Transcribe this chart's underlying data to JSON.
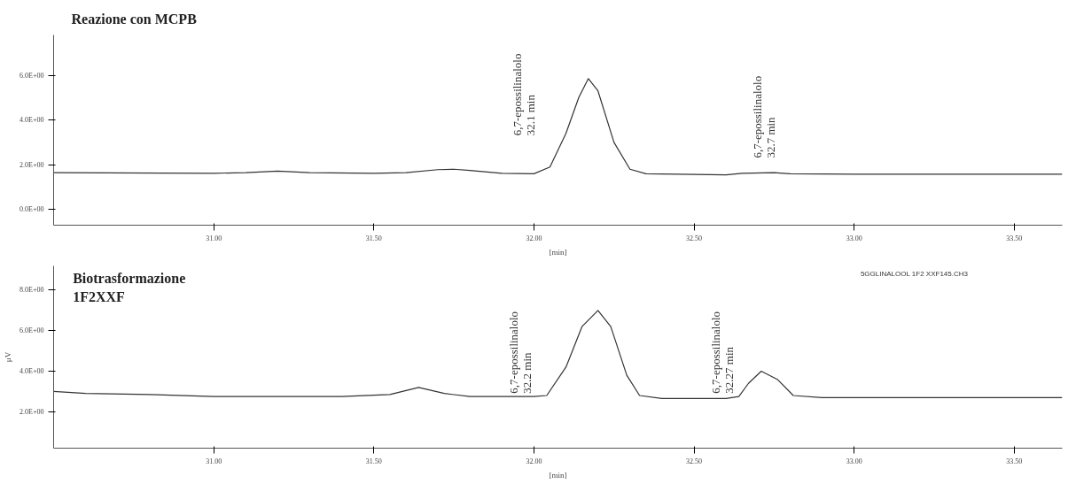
{
  "chart_data": [
    {
      "type": "line",
      "title": "Reazione con MCPB",
      "xlabel": "[min]",
      "xlim": [
        30.5,
        33.65
      ],
      "ylim": [
        -0.7,
        7.8
      ],
      "xticks": [
        {
          "value": 31,
          "label": "31.00"
        },
        {
          "value": 31.5,
          "label": "31.50"
        },
        {
          "value": 32,
          "label": "32.00"
        },
        {
          "value": 32.5,
          "label": "32.50"
        },
        {
          "value": 33,
          "label": "33.00"
        },
        {
          "value": 33.5,
          "label": "33.50"
        }
      ],
      "yticks": [
        {
          "value": 0,
          "label": "0.0E+00"
        },
        {
          "value": 2,
          "label": "2.0E+00"
        },
        {
          "value": 4,
          "label": "4.0E+00"
        },
        {
          "value": 6,
          "label": "6.0E+00"
        }
      ],
      "series": [
        {
          "color": "#333333",
          "x": [
            30.5,
            31.0,
            31.1,
            31.2,
            31.3,
            31.5,
            31.6,
            31.7,
            31.75,
            31.8,
            31.9,
            32.0,
            32.05,
            32.1,
            32.14,
            32.17,
            32.2,
            32.25,
            32.3,
            32.35,
            32.45,
            32.6,
            32.65,
            32.75,
            32.8,
            33.0,
            33.5,
            33.65
          ],
          "values": [
            1.65,
            1.62,
            1.65,
            1.72,
            1.65,
            1.62,
            1.65,
            1.78,
            1.8,
            1.75,
            1.62,
            1.6,
            1.9,
            3.4,
            5.0,
            5.85,
            5.3,
            3.0,
            1.8,
            1.6,
            1.58,
            1.55,
            1.62,
            1.65,
            1.6,
            1.58,
            1.58,
            1.58
          ]
        }
      ],
      "annotations": [
        "6,7-epossilinalolo\n32.1 min",
        "6,7-epossilinalolo\n32.7 min"
      ],
      "grid": false
    },
    {
      "type": "line",
      "title": "Biotrasformazione\n1F2XXF",
      "xlabel": "[min]",
      "ylabel": "μV",
      "xlim": [
        30.5,
        33.65
      ],
      "ylim": [
        0.2,
        9.2
      ],
      "xticks": [
        {
          "value": 31,
          "label": "31.00"
        },
        {
          "value": 31.5,
          "label": "31.50"
        },
        {
          "value": 32,
          "label": "32.00"
        },
        {
          "value": 32.5,
          "label": "32.50"
        },
        {
          "value": 33,
          "label": "33.00"
        },
        {
          "value": 33.5,
          "label": "33.50"
        }
      ],
      "yticks": [
        {
          "value": 2,
          "label": "2.0E+00"
        },
        {
          "value": 4,
          "label": "4.0E+00"
        },
        {
          "value": 6,
          "label": "6.0E+00"
        },
        {
          "value": 8,
          "label": "8.0E+00"
        }
      ],
      "series": [
        {
          "color": "#333333",
          "x": [
            30.5,
            30.6,
            30.8,
            31.0,
            31.4,
            31.55,
            31.64,
            31.72,
            31.8,
            32.0,
            32.04,
            32.1,
            32.15,
            32.2,
            32.24,
            32.29,
            32.33,
            32.4,
            32.6,
            32.64,
            32.67,
            32.71,
            32.76,
            32.81,
            32.9,
            33.65
          ],
          "values": [
            3.0,
            2.9,
            2.85,
            2.75,
            2.75,
            2.85,
            3.2,
            2.9,
            2.75,
            2.75,
            2.8,
            4.2,
            6.2,
            7.0,
            6.2,
            3.8,
            2.8,
            2.65,
            2.65,
            2.75,
            3.4,
            4.0,
            3.6,
            2.8,
            2.7,
            2.7
          ]
        }
      ],
      "annotations": [
        "6,7-epossilinalolo\n32.2 min",
        "6,7-epossilinalolo\n32.27 min",
        "5GGLINALOOL 1F2 XXF145.CH3"
      ],
      "grid": false
    }
  ]
}
